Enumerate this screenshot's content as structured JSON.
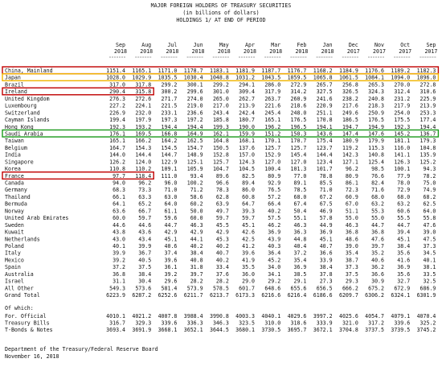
{
  "header": {
    "title": "MAJOR FOREIGN HOLDERS OF TREASURY SECURITIES",
    "subtitle": "(in billions of dollars)",
    "note": "HOLDINGS 1/ AT END OF PERIOD"
  },
  "table": {
    "columns": [
      {
        "month": "Sep",
        "year": "2018"
      },
      {
        "month": "Aug",
        "year": "2018"
      },
      {
        "month": "Jul",
        "year": "2018"
      },
      {
        "month": "Jun",
        "year": "2018"
      },
      {
        "month": "May",
        "year": "2018"
      },
      {
        "month": "Apr",
        "year": "2018"
      },
      {
        "month": "Mar",
        "year": "2018"
      },
      {
        "month": "Feb",
        "year": "2018"
      },
      {
        "month": "Jan",
        "year": "2018"
      },
      {
        "month": "Dec",
        "year": "2017"
      },
      {
        "month": "Nov",
        "year": "2017"
      },
      {
        "month": "Oct",
        "year": "2017"
      },
      {
        "month": "Sep",
        "year": "2017"
      }
    ],
    "rows": [
      {
        "name": "China, Mainland",
        "values": [
          "1151.4",
          "1165.1",
          "1171.0",
          "1178.7",
          "1183.1",
          "1181.9",
          "1187.7",
          "1176.7",
          "1168.2",
          "1184.9",
          "1176.6",
          "1189.2",
          "1182.3"
        ]
      },
      {
        "name": "Japan",
        "values": [
          "1028.0",
          "1029.9",
          "1035.5",
          "1030.4",
          "1048.8",
          "1031.2",
          "1043.5",
          "1059.5",
          "1065.8",
          "1061.5",
          "1084.1",
          "1094.0",
          "1096.0"
        ]
      },
      {
        "name": "Brazil",
        "values": [
          "317.0",
          "317.8",
          "299.2",
          "300.1",
          "299.2",
          "294.1",
          "286.0",
          "272.9",
          "265.7",
          "256.8",
          "265.3",
          "270.0",
          "272.8"
        ]
      },
      {
        "name": "Ireland",
        "values": [
          "290.4",
          "315.8",
          "300.2",
          "299.6",
          "301.0",
          "309.4",
          "317.9",
          "314.2",
          "327.5",
          "326.5",
          "324.3",
          "312.4",
          "310.6"
        ]
      },
      {
        "name": "United Kingdom",
        "values": [
          "276.3",
          "272.6",
          "271.7",
          "274.0",
          "265.0",
          "262.7",
          "263.7",
          "260.9",
          "241.6",
          "238.2",
          "240.8",
          "231.2",
          "225.9"
        ]
      },
      {
        "name": "Luxembourg",
        "values": [
          "227.2",
          "224.1",
          "221.5",
          "219.0",
          "217.0",
          "213.9",
          "221.6",
          "218.6",
          "220.9",
          "217.6",
          "218.3",
          "217.9",
          "213.9"
        ]
      },
      {
        "name": "Switzerland",
        "values": [
          "226.9",
          "232.0",
          "233.1",
          "236.6",
          "243.4",
          "242.4",
          "245.4",
          "248.0",
          "251.1",
          "249.6",
          "250.9",
          "254.0",
          "253.3"
        ]
      },
      {
        "name": "Cayman Islands",
        "values": [
          "199.4",
          "197.9",
          "197.3",
          "197.2",
          "185.8",
          "180.7",
          "165.1",
          "176.5",
          "170.8",
          "186.5",
          "176.5",
          "175.5",
          "177.4"
        ]
      },
      {
        "name": "Hong Kong",
        "values": [
          "192.3",
          "193.2",
          "194.4",
          "194.4",
          "199.3",
          "190.0",
          "196.2",
          "196.5",
          "194.1",
          "194.7",
          "194.9",
          "192.3",
          "194.4"
        ]
      },
      {
        "name": "Saudi Arabia",
        "values": [
          "176.1",
          "169.5",
          "166.8",
          "164.9",
          "162.1",
          "159.9",
          "151.2",
          "150.3",
          "143.6",
          "147.4",
          "147.6",
          "145.2",
          "136.7"
        ]
      },
      {
        "name": "Taiwan",
        "values": [
          "165.1",
          "166.2",
          "164.2",
          "162.5",
          "164.8",
          "168.1",
          "170.1",
          "170.7",
          "175.4",
          "180.9",
          "179.9",
          "181.1",
          "179.3"
        ]
      },
      {
        "name": "Belgium",
        "values": [
          "164.7",
          "154.3",
          "154.5",
          "154.7",
          "150.5",
          "137.6",
          "125.7",
          "125.7",
          "123.7",
          "119.2",
          "115.3",
          "116.0",
          "104.8"
        ]
      },
      {
        "name": "India",
        "values": [
          "144.0",
          "144.4",
          "144.7",
          "148.9",
          "152.8",
          "157.0",
          "152.9",
          "145.4",
          "144.4",
          "142.3",
          "140.8",
          "141.1",
          "135.9"
        ]
      },
      {
        "name": "Singapore",
        "values": [
          "126.2",
          "124.0",
          "122.9",
          "125.1",
          "125.7",
          "124.3",
          "127.0",
          "127.0",
          "123.4",
          "127.1",
          "125.4",
          "126.3",
          "125.2"
        ]
      },
      {
        "name": "Korea",
        "values": [
          "110.8",
          "110.2",
          "109.1",
          "105.9",
          "104.7",
          "104.5",
          "100.4",
          "101.3",
          "101.7",
          "96.2",
          "98.5",
          "100.1",
          "94.3"
        ]
      },
      {
        "name": "France",
        "values": [
          "97.7",
          "118.4",
          "111.0",
          "93.4",
          "89.6",
          "82.5",
          "80.9",
          "77.0",
          "78.8",
          "80.9",
          "76.6",
          "77.9",
          "78.2"
        ]
      },
      {
        "name": "Canada",
        "values": [
          "94.0",
          "96.2",
          "96.0",
          "100.2",
          "96.6",
          "89.4",
          "92.9",
          "89.1",
          "85.5",
          "86.1",
          "82.4",
          "78.0",
          "75.0"
        ]
      },
      {
        "name": "Germany",
        "values": [
          "68.3",
          "73.3",
          "71.0",
          "71.2",
          "78.3",
          "86.0",
          "76.5",
          "78.5",
          "71.0",
          "72.3",
          "71.6",
          "72.9",
          "74.9"
        ]
      },
      {
        "name": "Thailand",
        "values": [
          "66.1",
          "63.3",
          "63.0",
          "58.6",
          "62.8",
          "60.8",
          "57.2",
          "68.0",
          "67.2",
          "60.9",
          "68.0",
          "68.0",
          "68.2"
        ]
      },
      {
        "name": "Bermuda",
        "values": [
          "64.1",
          "65.2",
          "64.0",
          "60.2",
          "63.9",
          "64.7",
          "66.4",
          "67.4",
          "67.5",
          "67.0",
          "63.2",
          "63.2",
          "62.5"
        ]
      },
      {
        "name": "Norway",
        "values": [
          "63.6",
          "66.7",
          "61.1",
          "50.0",
          "49.7",
          "39.3",
          "40.2",
          "50.4",
          "46.9",
          "51.1",
          "55.3",
          "60.6",
          "64.0"
        ]
      },
      {
        "name": "United Arab Emirates",
        "values": [
          "60.0",
          "59.7",
          "59.6",
          "60.0",
          "59.7",
          "59.7",
          "57.5",
          "55.1",
          "57.8",
          "55.0",
          "55.0",
          "55.5",
          "55.8"
        ]
      },
      {
        "name": "Sweden",
        "values": [
          "44.6",
          "44.6",
          "44.7",
          "46.3",
          "45.5",
          "45.1",
          "46.2",
          "46.3",
          "44.9",
          "46.3",
          "44.7",
          "44.7",
          "47.6"
        ]
      },
      {
        "name": "Kuwait",
        "values": [
          "43.8",
          "43.6",
          "42.9",
          "42.9",
          "42.9",
          "42.6",
          "36.9",
          "36.3",
          "36.9",
          "36.8",
          "36.8",
          "39.4",
          "39.0"
        ]
      },
      {
        "name": "Netherlands",
        "values": [
          "43.0",
          "43.4",
          "45.1",
          "44.1",
          "45.3",
          "42.5",
          "43.9",
          "44.8",
          "45.1",
          "48.6",
          "47.6",
          "45.1",
          "47.5"
        ]
      },
      {
        "name": "Poland",
        "values": [
          "40.1",
          "39.9",
          "40.6",
          "40.2",
          "40.2",
          "41.2",
          "40.3",
          "40.4",
          "40.7",
          "39.0",
          "39.7",
          "38.4",
          "37.3"
        ]
      },
      {
        "name": "Italy",
        "values": [
          "39.9",
          "36.7",
          "37.4",
          "38.4",
          "40.7",
          "39.6",
          "36.4",
          "37.2",
          "36.6",
          "35.4",
          "35.2",
          "35.6",
          "34.5"
        ]
      },
      {
        "name": "Mexico",
        "values": [
          "39.2",
          "40.5",
          "39.6",
          "40.8",
          "40.2",
          "41.9",
          "45.2",
          "35.4",
          "33.9",
          "38.7",
          "40.6",
          "41.6",
          "40.1"
        ]
      },
      {
        "name": "Spain",
        "values": [
          "37.2",
          "37.5",
          "36.1",
          "31.8",
          "33.4",
          "35.5",
          "34.0",
          "36.9",
          "38.4",
          "37.3",
          "36.2",
          "36.9",
          "38.1"
        ]
      },
      {
        "name": "Australia",
        "values": [
          "36.8",
          "38.4",
          "39.2",
          "39.7",
          "37.6",
          "36.0",
          "34.1",
          "38.5",
          "37.8",
          "37.5",
          "36.6",
          "35.6",
          "33.5"
        ]
      },
      {
        "name": "Israel",
        "values": [
          "31.1",
          "30.4",
          "29.6",
          "28.2",
          "28.2",
          "29.0",
          "29.2",
          "29.1",
          "27.3",
          "29.3",
          "30.9",
          "32.7",
          "32.5"
        ]
      },
      {
        "name": "All Other",
        "values": [
          "549.3",
          "573.6",
          "581.4",
          "573.9",
          "578.5",
          "601.7",
          "648.6",
          "655.6",
          "656.5",
          "666.2",
          "675.2",
          "672.9",
          "686.9"
        ]
      },
      {
        "name": "Grand Total",
        "values": [
          "6223.9",
          "6287.2",
          "6252.6",
          "6211.7",
          "6213.7",
          "6173.3",
          "6216.6",
          "6216.4",
          "6186.6",
          "6209.7",
          "6306.2",
          "6324.1",
          "6301.9"
        ]
      }
    ]
  },
  "of_which": {
    "label": "Of which:",
    "rows": [
      {
        "name": "For. Official",
        "values": [
          "4010.1",
          "4021.2",
          "4007.8",
          "3988.4",
          "3990.8",
          "4003.3",
          "4040.1",
          "4029.6",
          "3997.2",
          "4025.6",
          "4054.7",
          "4079.1",
          "4070.4"
        ]
      },
      {
        "name": "Treasury Bills",
        "values": [
          "316.7",
          "329.3",
          "339.6",
          "336.3",
          "346.3",
          "323.5",
          "310.0",
          "318.6",
          "333.9",
          "321.0",
          "317.2",
          "339.6",
          "325.2"
        ]
      },
      {
        "name": "T-Bonds & Notes",
        "values": [
          "3693.4",
          "3691.9",
          "3668.1",
          "3652.1",
          "3644.5",
          "3680.1",
          "3730.5",
          "3695.7",
          "3672.1",
          "3704.8",
          "3737.5",
          "3739.5",
          "3745.2"
        ]
      }
    ]
  },
  "footer": {
    "source": "Department of the Treasury/Federal Reserve Board",
    "date": "November 16, 2018"
  }
}
